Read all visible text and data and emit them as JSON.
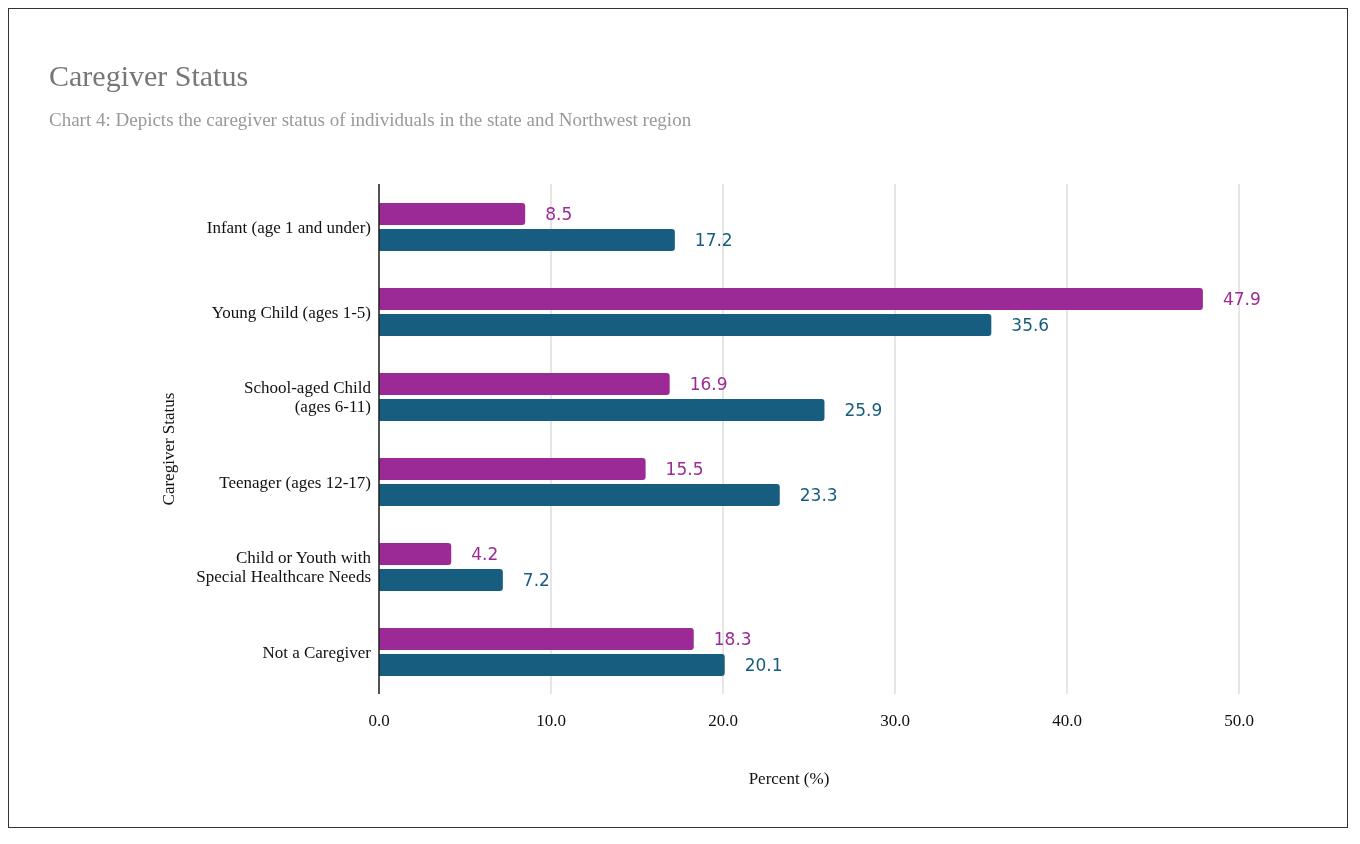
{
  "chart_data": {
    "type": "bar",
    "orientation": "horizontal",
    "title": "Caregiver Status",
    "subtitle": "Chart 4: Depicts the caregiver status of individuals in the state and Northwest region",
    "xlabel": "Percent (%)",
    "ylabel": "Caregiver Status",
    "categories": [
      "Infant (age 1 and under)",
      "Young Child (ages 1-5)",
      "School-aged Child (ages 6-11)",
      "Teenager (ages 12-17)",
      "Child or Youth with Special Healthcare Needs",
      "Not a Caregiver"
    ],
    "series": [
      {
        "color": "#9c2a96",
        "values": [
          8.5,
          47.9,
          16.9,
          15.5,
          4.2,
          18.3
        ]
      },
      {
        "color": "#175d80",
        "values": [
          17.2,
          35.6,
          25.9,
          23.3,
          7.2,
          20.1
        ]
      }
    ],
    "xlim": [
      0,
      50
    ],
    "xticks": [
      {
        "value": 0,
        "label": "0.0"
      },
      {
        "value": 10,
        "label": "10.0"
      },
      {
        "value": 20,
        "label": "20.0"
      },
      {
        "value": 30,
        "label": "30.0"
      },
      {
        "value": 40,
        "label": "40.0"
      },
      {
        "value": 50,
        "label": "50.0"
      }
    ],
    "grid": "x",
    "data_labels": true,
    "legend": false
  }
}
